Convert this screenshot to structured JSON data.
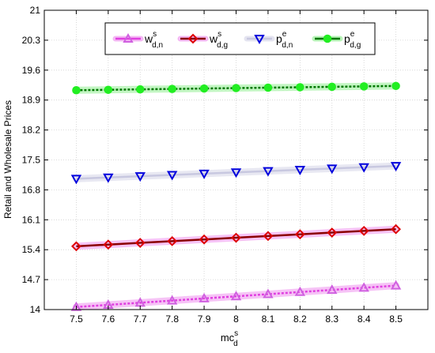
{
  "chart_data": {
    "type": "line",
    "xlabel": "mc",
    "xlabel_sup": "s",
    "xlabel_sub": "d",
    "ylabel": "Retail and Wholesale Prices",
    "x": [
      7.5,
      7.6,
      7.7,
      7.8,
      7.9,
      8,
      8.1,
      8.2,
      8.3,
      8.4,
      8.5
    ],
    "x_tick_labels": [
      "7.5",
      "7.6",
      "7.7",
      "7.8",
      "7.9",
      "8",
      "8.1",
      "8.2",
      "8.3",
      "8.4",
      "8.5"
    ],
    "y_ticks": [
      14,
      14.7,
      15.4,
      16.1,
      16.8,
      17.5,
      18.2,
      18.9,
      19.6,
      20.3,
      21
    ],
    "y_tick_labels": [
      "14",
      "14.7",
      "15.4",
      "16.1",
      "16.8",
      "17.5",
      "18.2",
      "18.9",
      "19.6",
      "20.3",
      "21"
    ],
    "xlim": [
      7.4,
      8.6
    ],
    "ylim": [
      14,
      21
    ],
    "grid": true,
    "legend_position": "top",
    "series": [
      {
        "name": "w",
        "name_sup": "s",
        "name_sub": "d,n",
        "marker": "triangle-up",
        "color": "#d060e0",
        "line_color": "#e040e0",
        "band_color": "#f4b8f4",
        "values": [
          14.06,
          14.11,
          14.16,
          14.21,
          14.26,
          14.31,
          14.36,
          14.41,
          14.46,
          14.51,
          14.56
        ]
      },
      {
        "name": "w",
        "name_sup": "s",
        "name_sub": "d,g",
        "marker": "diamond",
        "color": "#dd0000",
        "line_color": "#8b0000",
        "band_color": "#f4b8f4",
        "values": [
          15.48,
          15.52,
          15.56,
          15.6,
          15.64,
          15.68,
          15.72,
          15.76,
          15.8,
          15.84,
          15.88
        ]
      },
      {
        "name": "p",
        "name_sup": "e",
        "name_sub": "d,n",
        "marker": "triangle-down",
        "color": "#0000dd",
        "line_color": "#c8c8e0",
        "band_color": "#e4e4f0",
        "values": [
          17.06,
          17.09,
          17.12,
          17.15,
          17.18,
          17.21,
          17.24,
          17.27,
          17.3,
          17.33,
          17.36
        ]
      },
      {
        "name": "p",
        "name_sup": "e",
        "name_sub": "d,g",
        "marker": "circle",
        "color": "#22ee22",
        "line_color": "#007700",
        "band_color": "#b8f4b8",
        "values": [
          19.13,
          19.14,
          19.15,
          19.16,
          19.17,
          19.18,
          19.19,
          19.2,
          19.21,
          19.22,
          19.23
        ]
      }
    ]
  }
}
